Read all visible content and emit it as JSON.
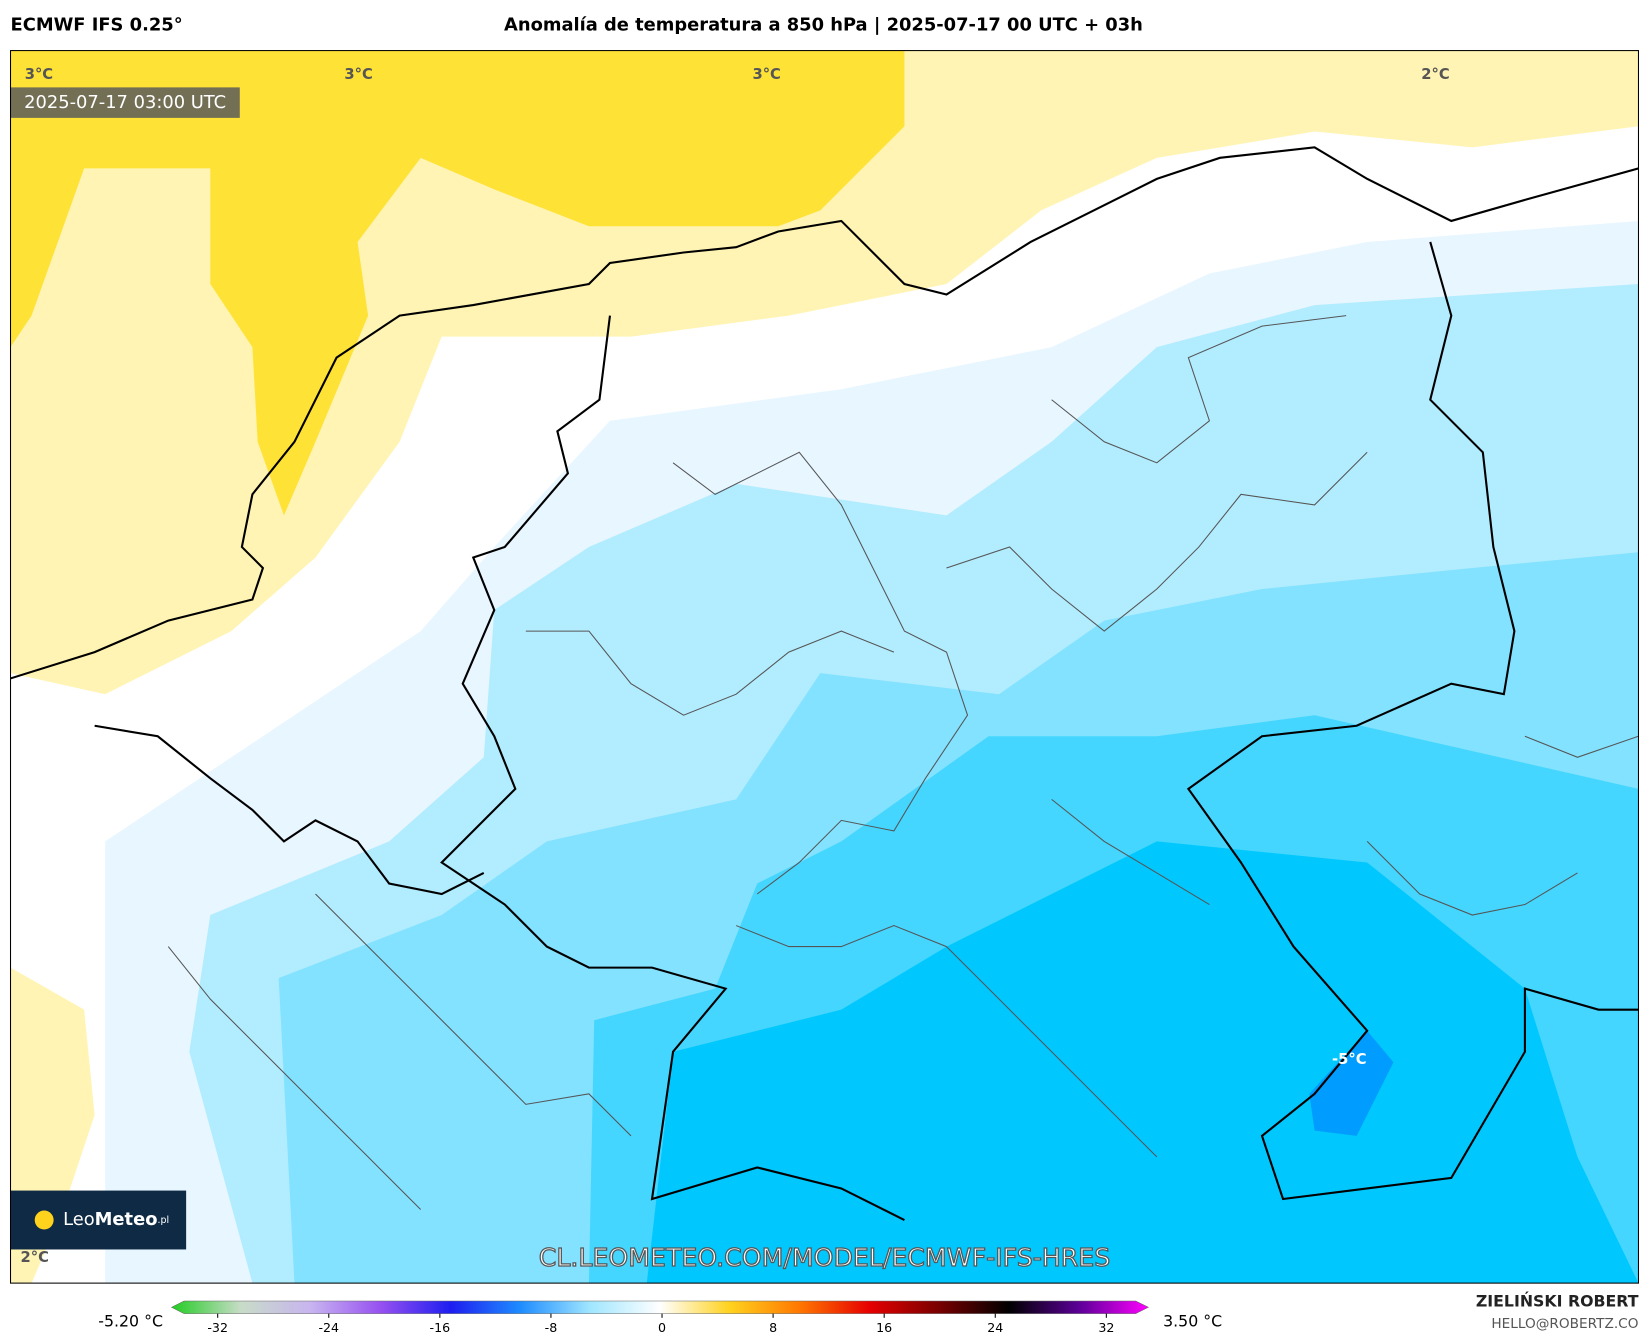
{
  "header": {
    "model": "ECMWF IFS 0.25°",
    "title": "Anomalía de temperatura a 850 hPa | 2025-07-17 00 UTC + 03h"
  },
  "map": {
    "timestamp": "2025-07-17 03:00 UTC",
    "contour_labels": [
      "3°C",
      "3°C",
      "3°C",
      "2°C",
      "2°C",
      "-5°C"
    ],
    "watermark": "CL.LEOMETEO.COM/MODEL/ECMWF-IFS-HRES",
    "logo": {
      "light": "Leo",
      "bold": "Meteo",
      "suffix": ".pl"
    }
  },
  "colorbar": {
    "min_label": "-5.20 °C",
    "max_label": "3.50 °C",
    "lim": [
      -32,
      32
    ],
    "ticks": [
      -32,
      -24,
      -16,
      -8,
      0,
      8,
      16,
      24,
      32
    ],
    "colors": [
      "#22cc22",
      "#c8dcc8",
      "#c8b4f0",
      "#9650f0",
      "#1e1ef0",
      "#1e8cff",
      "#a0e6ff",
      "#ffffff",
      "#ffd21e",
      "#ff7800",
      "#e60000",
      "#780000",
      "#000000",
      "#5a0096",
      "#ff00ff"
    ]
  },
  "footer": {
    "author": "ZIELIŃSKI ROBERT",
    "email": "HELLO@ROBERTZ.CO"
  }
}
